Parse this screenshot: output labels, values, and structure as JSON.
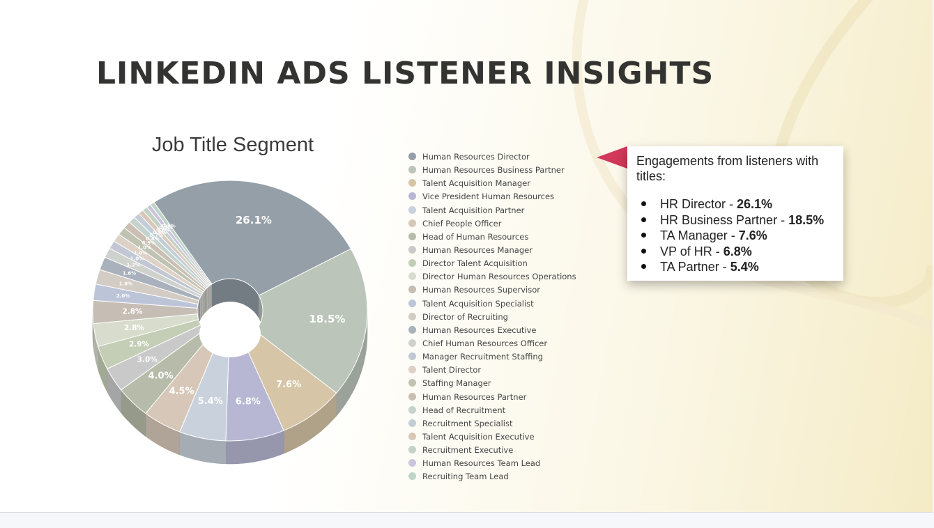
{
  "slide": {
    "title": "LINKEDIN ADS LISTENER INSIGHTS"
  },
  "callout": {
    "intro": "Engagements from listeners with titles:",
    "items": [
      {
        "label": "HR Director",
        "sep": " - ",
        "value": "26.1%"
      },
      {
        "label": "HR Business Partner",
        "sep": " - ",
        "value": "18.5%"
      },
      {
        "label": "TA Manager",
        "sep": " - ",
        "value": "7.6%"
      },
      {
        "label": "VP of HR",
        "sep": " - ",
        "value": "6.8%"
      },
      {
        "label": "TA Partner",
        "sep": " - ",
        "value": "5.4%"
      }
    ],
    "accent_color": "#d1385a"
  },
  "chart_data": {
    "type": "pie",
    "title": "Job Title Segment",
    "hole": true,
    "legend_position": "right",
    "categories": [
      "Human Resources Director",
      "Human Resources Business Partner",
      "Talent Acquisition Manager",
      "Vice President Human Resources",
      "Talent Acquisition Partner",
      "Chief People Officer",
      "Head of Human Resources",
      "Human Resources Manager",
      "Director Talent Acquisition",
      "Director Human Resources Operations",
      "Human Resources Supervisor",
      "Talent Acquisition Specialist",
      "Director of Recruiting",
      "Human Resources Executive",
      "Chief Human Resources Officer",
      "Manager Recruitment Staffing",
      "Talent Director",
      "Staffing Manager",
      "Human Resources Partner",
      "Head of Recruitment",
      "Recruitment Specialist",
      "Talent Acquisition Executive",
      "Recruitment Executive",
      "Human Resources Team Lead",
      "Recruiting Team Lead"
    ],
    "values": [
      26.1,
      18.5,
      7.6,
      6.8,
      5.4,
      4.5,
      4.0,
      3.0,
      2.9,
      2.8,
      2.8,
      2.0,
      1.8,
      1.6,
      1.2,
      1.0,
      1.0,
      1.0,
      0.9,
      0.8,
      0.7,
      0.6,
      0.6,
      0.5,
      0.5
    ],
    "labels": [
      "26.1%",
      "18.5%",
      "7.6%",
      "6.8%",
      "5.4%",
      "4.5%",
      "4.0%",
      "3.0%",
      "2.9%",
      "2.8%",
      "2.8%",
      "2.0%",
      "1.8%",
      "1.6%",
      "1.2%",
      "1.0%",
      "1.0%",
      "1.0%",
      "0.9%",
      "0.8%",
      "0.7%",
      "0.6%",
      "0.6%",
      "0.5%",
      "0.5%"
    ],
    "colors": [
      "#959fa8",
      "#bcc5ba",
      "#d6c5a7",
      "#b7b7d3",
      "#c9d2dc",
      "#d7c7b9",
      "#b7bcaa",
      "#c9c9c9",
      "#c4cdb5",
      "#d7dccd",
      "#c6bdb4",
      "#bcc5d8",
      "#d3ccc4",
      "#a9b2bc",
      "#cfd2cc",
      "#c2c7d4",
      "#ddd1c6",
      "#c0c3b2",
      "#cbbfb3",
      "#c5d3cd",
      "#c3cdd8",
      "#dbc7b8",
      "#c3d2c4",
      "#cac4dc",
      "#bfd4c8"
    ]
  }
}
